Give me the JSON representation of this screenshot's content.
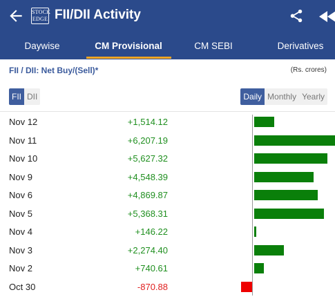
{
  "header": {
    "title": "FII/DII Activity",
    "logo_text_top": "STOCK",
    "logo_text_bottom": "EDGE",
    "back_icon": "arrow-left-icon",
    "share_icon": "share-icon",
    "rewind_icon": "rewind-icon"
  },
  "tabs": [
    {
      "label": "Daywise",
      "active": false
    },
    {
      "label": "CM Provisional",
      "active": true
    },
    {
      "label": "CM SEBI",
      "active": false
    },
    {
      "label": "Derivatives",
      "active": false
    }
  ],
  "subheading": "FII / DII: Net Buy/(Sell)*",
  "units": "(Rs. crores)",
  "entity_toggle": {
    "options": [
      "FII",
      "DII"
    ],
    "selected": "FII"
  },
  "period_toggle": {
    "options": [
      "Daily",
      "Monthly",
      "Yearly"
    ],
    "selected": "Daily"
  },
  "colors": {
    "header": "#2b4a8b",
    "accent": "#f5a623",
    "positive": "#0a7f0a",
    "negative": "#ee0000"
  },
  "rows": [
    {
      "date": "Nov 12",
      "value_text": "+1,514.12",
      "value": 1514.12
    },
    {
      "date": "Nov 11",
      "value_text": "+6,207.19",
      "value": 6207.19
    },
    {
      "date": "Nov 10",
      "value_text": "+5,627.32",
      "value": 5627.32
    },
    {
      "date": "Nov 9",
      "value_text": "+4,548.39",
      "value": 4548.39
    },
    {
      "date": "Nov 6",
      "value_text": "+4,869.87",
      "value": 4869.87
    },
    {
      "date": "Nov 5",
      "value_text": "+5,368.31",
      "value": 5368.31
    },
    {
      "date": "Nov 4",
      "value_text": "+146.22",
      "value": 146.22
    },
    {
      "date": "Nov 3",
      "value_text": "+2,274.40",
      "value": 2274.4
    },
    {
      "date": "Nov 2",
      "value_text": "+740.61",
      "value": 740.61
    },
    {
      "date": "Oct 30",
      "value_text": "-870.88",
      "value": -870.88
    }
  ]
}
